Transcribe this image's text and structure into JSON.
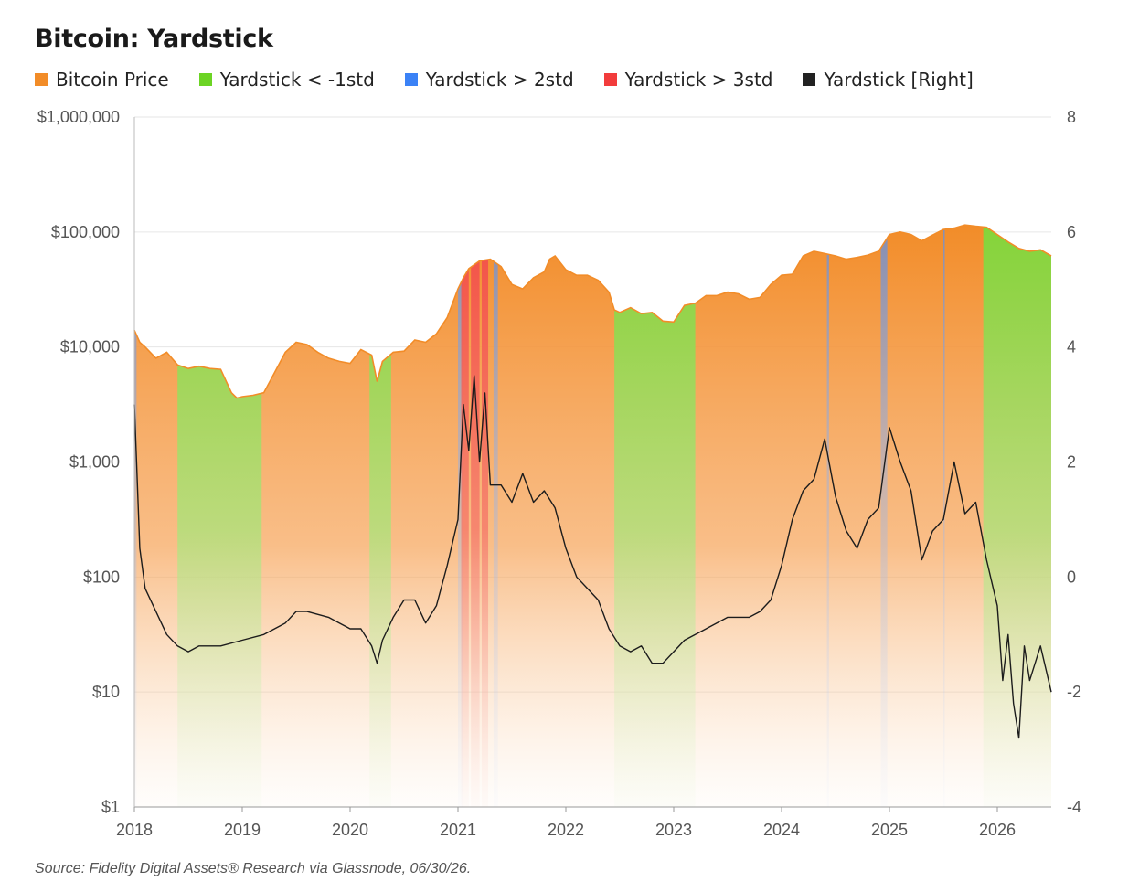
{
  "title": "Bitcoin: Yardstick",
  "source": "Source: Fidelity Digital Assets® Research via Glassnode, 06/30/26.",
  "legend": [
    {
      "label": "Bitcoin Price",
      "color": "#F28C28"
    },
    {
      "label": "Yardstick < -1std",
      "color": "#6CD424"
    },
    {
      "label": "Yardstick > 2std",
      "color": "#3B82F6"
    },
    {
      "label": "Yardstick > 3std",
      "color": "#F23C3C"
    },
    {
      "label": "Yardstick [Right]",
      "color": "#222222"
    }
  ],
  "chart_data": {
    "type": "area",
    "title": "Bitcoin: Yardstick",
    "y_left": {
      "scale": "log",
      "range": [
        1,
        1000000
      ],
      "ticks": [
        1,
        10,
        100,
        1000,
        10000,
        100000,
        1000000
      ],
      "tick_labels": [
        "$1",
        "$10",
        "$100",
        "$1,000",
        "$10,000",
        "$100,000",
        "$1,000,000"
      ]
    },
    "y_right": {
      "scale": "linear",
      "range": [
        -4,
        8
      ],
      "ticks": [
        -4,
        -2,
        0,
        2,
        4,
        6,
        8
      ],
      "tick_labels": [
        "-4",
        "-2",
        "0",
        "2",
        "4",
        "6",
        "8"
      ]
    },
    "x_range": [
      2018.0,
      2026.5
    ],
    "x_ticks": [
      2018,
      2019,
      2020,
      2021,
      2022,
      2023,
      2024,
      2025,
      2026
    ],
    "x_tick_labels": [
      "2018",
      "2019",
      "2020",
      "2021",
      "2022",
      "2023",
      "2024",
      "2025",
      "2026"
    ],
    "grid": true,
    "legend_position": "top",
    "series": [
      {
        "name": "Bitcoin Price",
        "axis": "left",
        "x": [
          2018.0,
          2018.05,
          2018.1,
          2018.2,
          2018.3,
          2018.4,
          2018.5,
          2018.6,
          2018.7,
          2018.8,
          2018.9,
          2018.95,
          2019.0,
          2019.1,
          2019.2,
          2019.3,
          2019.4,
          2019.5,
          2019.6,
          2019.7,
          2019.8,
          2019.9,
          2020.0,
          2020.1,
          2020.2,
          2020.25,
          2020.3,
          2020.4,
          2020.5,
          2020.6,
          2020.7,
          2020.8,
          2020.9,
          2021.0,
          2021.05,
          2021.1,
          2021.2,
          2021.3,
          2021.4,
          2021.5,
          2021.6,
          2021.7,
          2021.8,
          2021.85,
          2021.9,
          2022.0,
          2022.1,
          2022.2,
          2022.3,
          2022.4,
          2022.45,
          2022.5,
          2022.6,
          2022.7,
          2022.8,
          2022.9,
          2023.0,
          2023.1,
          2023.2,
          2023.3,
          2023.4,
          2023.5,
          2023.6,
          2023.7,
          2023.8,
          2023.9,
          2024.0,
          2024.1,
          2024.2,
          2024.3,
          2024.4,
          2024.5,
          2024.6,
          2024.7,
          2024.8,
          2024.9,
          2025.0,
          2025.1,
          2025.2,
          2025.3,
          2025.4,
          2025.5,
          2025.6,
          2025.7,
          2025.8,
          2025.9,
          2026.0,
          2026.1,
          2026.2,
          2026.3,
          2026.4,
          2026.5
        ],
        "values": [
          14000,
          11000,
          10000,
          8000,
          9000,
          7000,
          6500,
          6800,
          6500,
          6400,
          4000,
          3600,
          3700,
          3800,
          4000,
          6000,
          9000,
          11000,
          10500,
          9000,
          8000,
          7500,
          7200,
          9500,
          8500,
          5000,
          7500,
          9000,
          9200,
          11500,
          11000,
          13000,
          18000,
          32000,
          40000,
          48000,
          56000,
          58000,
          50000,
          35000,
          32000,
          40000,
          45000,
          58000,
          62000,
          47000,
          42000,
          42000,
          38000,
          30000,
          21000,
          20000,
          22000,
          19500,
          20000,
          16800,
          16500,
          23000,
          24000,
          28000,
          28000,
          30000,
          29000,
          26000,
          27000,
          35000,
          42000,
          43000,
          62000,
          68000,
          65000,
          62000,
          58000,
          60000,
          63000,
          68000,
          95000,
          100000,
          95000,
          84000,
          94000,
          105000,
          108000,
          115000,
          112000,
          110000,
          95000,
          82000,
          72000,
          68000,
          70000,
          62000
        ]
      },
      {
        "name": "Yardstick [Right]",
        "axis": "right",
        "x": [
          2018.0,
          2018.02,
          2018.05,
          2018.1,
          2018.2,
          2018.3,
          2018.4,
          2018.5,
          2018.6,
          2018.8,
          2019.0,
          2019.2,
          2019.4,
          2019.5,
          2019.6,
          2019.8,
          2019.9,
          2020.0,
          2020.1,
          2020.2,
          2020.25,
          2020.3,
          2020.4,
          2020.5,
          2020.6,
          2020.7,
          2020.8,
          2020.9,
          2021.0,
          2021.05,
          2021.1,
          2021.15,
          2021.2,
          2021.25,
          2021.3,
          2021.4,
          2021.5,
          2021.6,
          2021.7,
          2021.8,
          2021.9,
          2022.0,
          2022.1,
          2022.2,
          2022.3,
          2022.4,
          2022.5,
          2022.6,
          2022.7,
          2022.8,
          2022.9,
          2023.0,
          2023.1,
          2023.2,
          2023.3,
          2023.5,
          2023.6,
          2023.7,
          2023.8,
          2023.9,
          2024.0,
          2024.1,
          2024.2,
          2024.3,
          2024.4,
          2024.5,
          2024.6,
          2024.7,
          2024.8,
          2024.9,
          2025.0,
          2025.1,
          2025.2,
          2025.3,
          2025.4,
          2025.5,
          2025.6,
          2025.7,
          2025.8,
          2025.9,
          2026.0,
          2026.05,
          2026.1,
          2026.15,
          2026.2,
          2026.25,
          2026.3,
          2026.4,
          2026.5
        ],
        "values": [
          3.0,
          2.0,
          0.5,
          -0.2,
          -0.6,
          -1.0,
          -1.2,
          -1.3,
          -1.2,
          -1.2,
          -1.1,
          -1.0,
          -0.8,
          -0.6,
          -0.6,
          -0.7,
          -0.8,
          -0.9,
          -0.9,
          -1.2,
          -1.5,
          -1.1,
          -0.7,
          -0.4,
          -0.4,
          -0.8,
          -0.5,
          0.2,
          1.0,
          3.0,
          2.2,
          3.5,
          2.0,
          3.2,
          1.6,
          1.6,
          1.3,
          1.8,
          1.3,
          1.5,
          1.2,
          0.5,
          0.0,
          -0.2,
          -0.4,
          -0.9,
          -1.2,
          -1.3,
          -1.2,
          -1.5,
          -1.5,
          -1.3,
          -1.1,
          -1.0,
          -0.9,
          -0.7,
          -0.7,
          -0.7,
          -0.6,
          -0.4,
          0.2,
          1.0,
          1.5,
          1.7,
          2.4,
          1.4,
          0.8,
          0.5,
          1.0,
          1.2,
          2.6,
          2.0,
          1.5,
          0.3,
          0.8,
          1.0,
          2.0,
          1.1,
          1.3,
          0.3,
          -0.5,
          -1.8,
          -1.0,
          -2.2,
          -2.8,
          -1.2,
          -1.8,
          -1.2,
          -2.0
        ]
      }
    ],
    "bands": [
      {
        "name": "Yardstick < -1std",
        "ranges": [
          [
            2018.4,
            2019.18
          ],
          [
            2020.18,
            2020.38
          ],
          [
            2022.45,
            2023.2
          ],
          [
            2025.87,
            2026.5
          ]
        ]
      },
      {
        "name": "Yardstick > 2std",
        "ranges": [
          [
            2018.0,
            2018.02
          ],
          [
            2021.0,
            2021.05
          ],
          [
            2021.33,
            2021.37
          ],
          [
            2024.42,
            2024.44
          ],
          [
            2024.92,
            2024.98
          ],
          [
            2025.5,
            2025.51
          ]
        ]
      },
      {
        "name": "Yardstick > 3std",
        "ranges": [
          [
            2021.03,
            2021.1
          ],
          [
            2021.12,
            2021.2
          ],
          [
            2021.22,
            2021.28
          ]
        ]
      }
    ]
  }
}
